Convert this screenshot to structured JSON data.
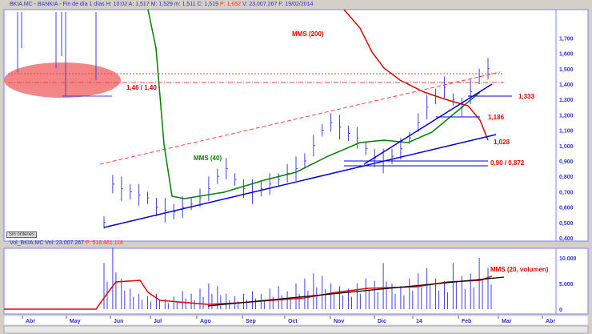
{
  "header": {
    "symbol": "BKIA.MC - BANKIA - Fin de día 1 días",
    "fields": "H: 10:02  A: 1,517  M: 1,529  m: 1,511  C: 1,519",
    "p_field": "P: 1,652",
    "tail": "V: 23.007.267  F: 19/02/2014"
  },
  "volume_header": {
    "label": "Vol_BKIA.MC  Vol: 23.007.267",
    "p_field": "P: 518.881.118"
  },
  "orders_button": "Sin órdenes",
  "colors": {
    "axis": "#3030e0",
    "bars": "#4040e0",
    "mms200": "#e00000",
    "mms40": "#008000",
    "trend": "#0000e0",
    "ellipse": "#f07070"
  },
  "chart_data": [
    {
      "type": "line",
      "title": "BKIA.MC daily price",
      "ylim": [
        0.4,
        1.8
      ],
      "yticks": [
        "1,700",
        "1,600",
        "1,500",
        "1,400",
        "1,300",
        "1,200",
        "1,100",
        "1,000",
        "0,900",
        "0,800",
        "0,700",
        "0,600",
        "0,500",
        "0,400"
      ],
      "x_labels": [
        "Abr",
        "May",
        "Jun",
        "Jul",
        "Ago",
        "Sep",
        "Oct",
        "Nov",
        "Dic",
        "14",
        "Feb",
        "Mar",
        "Abr"
      ],
      "price_weeks_from_late_may": [
        0.5,
        0.75,
        0.72,
        0.7,
        0.68,
        0.66,
        0.6,
        0.58,
        0.57,
        0.6,
        0.62,
        0.66,
        0.72,
        0.8,
        0.85,
        0.78,
        0.72,
        0.7,
        0.72,
        0.75,
        0.78,
        0.82,
        0.85,
        0.9,
        1.0,
        1.1,
        1.15,
        1.12,
        1.08,
        1.05,
        0.98,
        0.92,
        0.9,
        0.93,
        0.98,
        1.05,
        1.15,
        1.25,
        1.32,
        1.38,
        1.3,
        1.25,
        1.35,
        1.45,
        1.5
      ],
      "annotations": {
        "mms200": "MMS (200)",
        "mms40": "MMS (40)",
        "level_146": "1,46 / 1,40",
        "level_1333": "1,333",
        "level_1186": "1,186",
        "level_1028": "1,028",
        "level_090": "0,90 / 0,872"
      }
    },
    {
      "type": "bar",
      "title": "Volumen",
      "ylim": [
        0,
        12000
      ],
      "yticks": [
        "10.000",
        "5.000",
        "0"
      ],
      "volume_weeks_from_late_may": [
        9000,
        12000,
        6000,
        4000,
        3000,
        2500,
        3000,
        2000,
        2500,
        3500,
        3000,
        4000,
        5000,
        4500,
        3000,
        2500,
        3000,
        3500,
        3000,
        4000,
        4500,
        3500,
        5000,
        6000,
        7000,
        6500,
        5000,
        4500,
        4000,
        5000,
        6000,
        5500,
        9000,
        5000,
        4500,
        6000,
        7000,
        8000,
        6000,
        5500,
        9000,
        6500,
        7000,
        10000,
        8000
      ],
      "annotation": "MMS (20, volumen)"
    }
  ]
}
